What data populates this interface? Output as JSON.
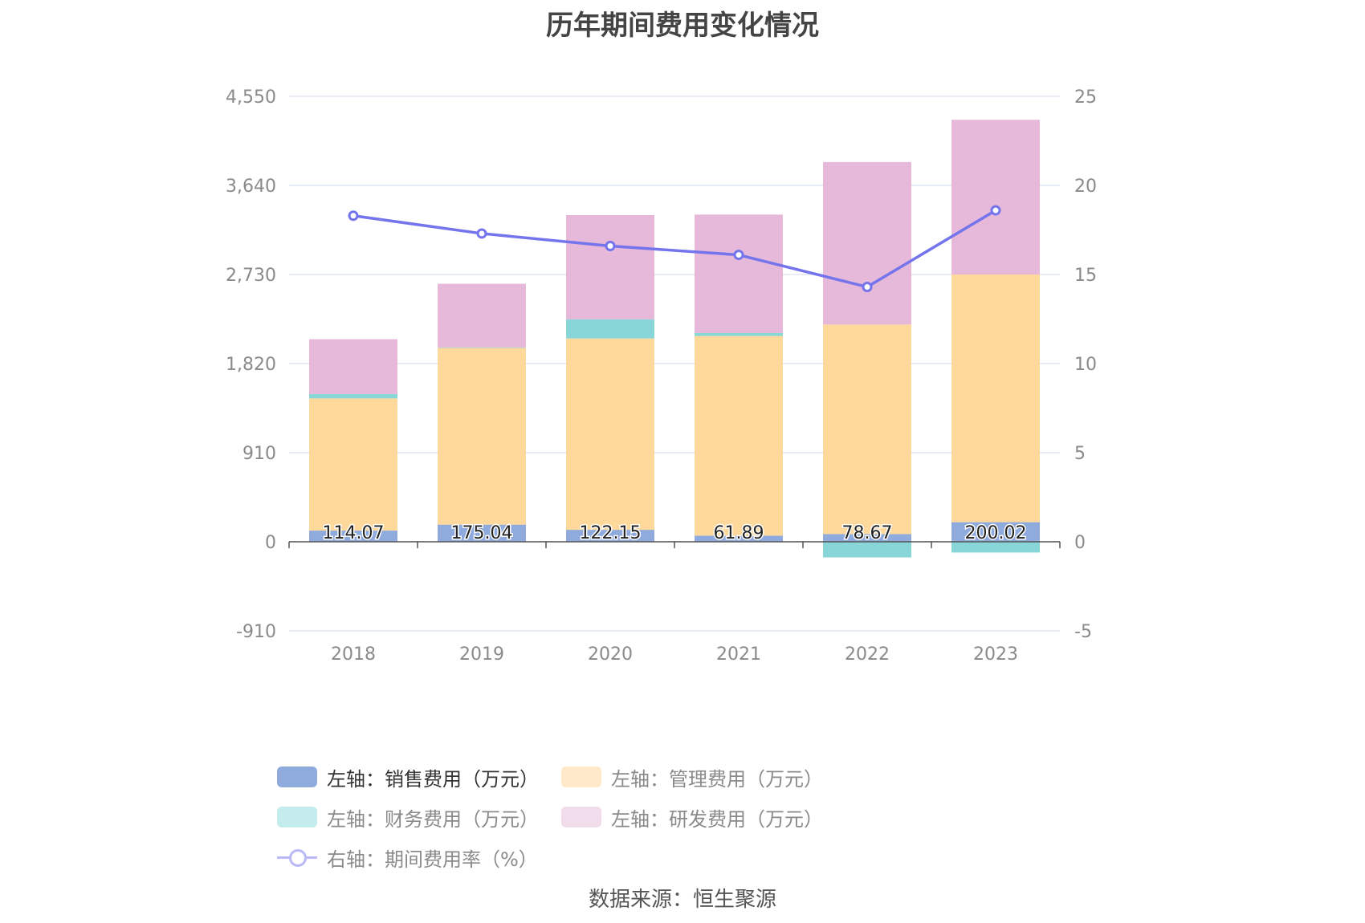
{
  "title": "历年期间费用变化情况",
  "source": "数据来源：恒生聚源",
  "colors": {
    "sales": "#8faadc",
    "admin": "#ffd99b",
    "finance": "#88d6d8",
    "rd": "#e6b8d9",
    "rate": "#7474ec"
  },
  "legend": [
    {
      "label": "左轴：销售费用（万元）",
      "color": "#8faadc",
      "active": true
    },
    {
      "label": "左轴：管理费用（万元）",
      "color": "#ffe9c9",
      "active": false
    },
    {
      "label": "左轴：财务费用（万元）",
      "color": "#c4ecec",
      "active": false
    },
    {
      "label": "左轴：研发费用（万元）",
      "color": "#f1dcec",
      "active": false
    },
    {
      "label": "右轴：期间费用率（%）",
      "color": "#b9b9f5",
      "active": false,
      "line": true
    }
  ],
  "chart_data": {
    "type": "bar",
    "stacked": true,
    "title": "历年期间费用变化情况",
    "categories": [
      "2018",
      "2019",
      "2020",
      "2021",
      "2022",
      "2023"
    ],
    "left_axis": {
      "ticks": [
        "4,550",
        "3,640",
        "2,730",
        "1,820",
        "910",
        "0",
        "-910"
      ],
      "range": [
        -910,
        4550
      ]
    },
    "right_axis": {
      "ticks": [
        "25",
        "20",
        "15",
        "10",
        "5",
        "0",
        "-5"
      ],
      "range": [
        -5,
        25
      ]
    },
    "grid": true,
    "legend_position": "bottom",
    "series": [
      {
        "name": "左轴：销售费用（万元）",
        "axis": "left",
        "values": [
          114.07,
          175.04,
          122.15,
          61.89,
          78.67,
          200.02
        ],
        "labels": [
          "114.07",
          "175.04",
          "122.15",
          "61.89",
          "78.67",
          "200.02"
        ]
      },
      {
        "name": "左轴：管理费用（万元）",
        "axis": "left",
        "values": [
          1350,
          1805,
          1955,
          2040,
          2140,
          2530
        ]
      },
      {
        "name": "左轴：财务费用（万元）",
        "axis": "left",
        "values": [
          45,
          5,
          195,
          30,
          0,
          0
        ],
        "negative_values": [
          0,
          0,
          0,
          0,
          -160,
          -110
        ]
      },
      {
        "name": "左轴：研发费用（万元）",
        "axis": "left",
        "values": [
          560,
          650,
          1065,
          1210,
          1660,
          1580
        ]
      },
      {
        "name": "右轴：期间费用率（%）",
        "axis": "right",
        "type": "line",
        "values": [
          18.3,
          17.3,
          16.6,
          16.1,
          14.3,
          18.6
        ]
      }
    ]
  }
}
